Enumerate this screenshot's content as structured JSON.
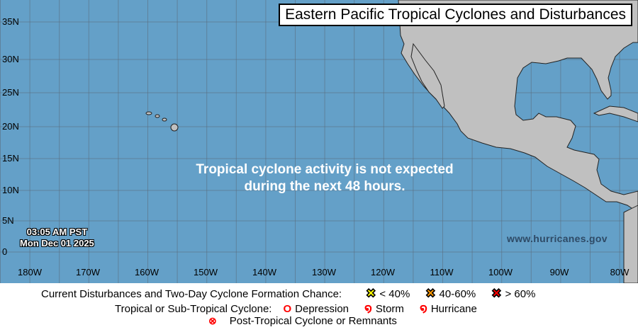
{
  "title": "Eastern Pacific Tropical Cyclones and Disturbances",
  "message_line1": "Tropical cyclone activity is not expected",
  "message_line2": "during the next 48 hours.",
  "timestamp_time": "03:05 AM PST",
  "timestamp_date": "Mon Dec 01 2025",
  "website": "www.hurricanes.gov",
  "lat_labels": [
    "35N",
    "30N",
    "25N",
    "20N",
    "15N",
    "10N",
    "5N",
    "0"
  ],
  "lon_labels": [
    "180W",
    "170W",
    "160W",
    "150W",
    "140W",
    "130W",
    "120W",
    "110W",
    "100W",
    "90W",
    "80W"
  ],
  "colors": {
    "ocean": "#64a0c8",
    "land": "#c0c0c0",
    "low": "#ffff00",
    "medium": "#ff9900",
    "high": "#ff0000",
    "cyclone": "#ff0000"
  },
  "legend": {
    "disturbances_label": "Current Disturbances and Two-Day Cyclone Formation Chance:",
    "low": "< 40%",
    "medium": "40-60%",
    "high": "> 60%",
    "cyclone_label": "Tropical or Sub-Tropical Cyclone:",
    "depression": "Depression",
    "storm": "Storm",
    "hurricane": "Hurricane",
    "post_tropical": "Post-Tropical Cyclone or Remnants"
  }
}
